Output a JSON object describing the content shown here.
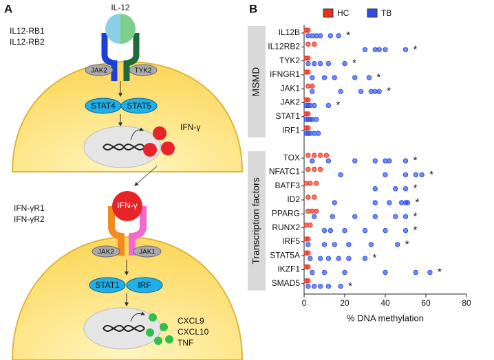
{
  "diagram": {
    "panel_label": "A",
    "ligand1": "IL-12",
    "receptor1a": "IL12-RB1",
    "receptor1b": "IL12-RB2",
    "kinase1a": "JAK2",
    "kinase1b": "TYK2",
    "stat1a": "STAT4",
    "stat1b": "STAT5",
    "product1": "IFN-γ",
    "ligand2": "IFN-γ",
    "receptor2a": "IFN-γR1",
    "receptor2b": "IFN-γR2",
    "kinase2a": "JAK2",
    "kinase2b": "JAK1",
    "stat2a": "STAT1",
    "stat2b": "IRF",
    "products2": [
      "CXCL9",
      "CXCL10",
      "TNF"
    ]
  },
  "chart_data": {
    "type": "dotplot",
    "panel_label": "B",
    "x_label": "% DNA methylation",
    "xlim": [
      0,
      80
    ],
    "xticks": [
      0,
      20,
      40,
      60,
      80
    ],
    "groups": [
      {
        "name": "MSMD",
        "categories": [
          "IL12B",
          "IL12RB2",
          "TYK2",
          "IFNGR1",
          "JAK1",
          "JAK2",
          "STAT1",
          "IRF1"
        ]
      },
      {
        "name": "Transcription factors",
        "categories": [
          "TOX",
          "NFATC1",
          "BATF3",
          "ID2",
          "PPARG",
          "RUNX2",
          "IRF5",
          "STAT5A",
          "IKZF1",
          "SMAD5"
        ]
      }
    ],
    "significance": [
      [
        "*",
        "*",
        "*",
        "*",
        "*",
        "*",
        null,
        null
      ],
      [
        "*",
        "*",
        "*",
        "*",
        "*",
        "*",
        "*",
        "*",
        "*",
        "*"
      ]
    ],
    "series": [
      {
        "name": "HC",
        "color": "#e8321e",
        "values": [
          [
            [
              1,
              2
            ],
            [
              2,
              5
            ],
            [
              1,
              2
            ],
            [
              1,
              2
            ],
            [
              2,
              4
            ],
            [
              1,
              2
            ],
            [
              1,
              2
            ],
            [
              1,
              2
            ]
          ],
          [
            [
              2,
              5,
              8,
              11
            ],
            [
              2,
              5,
              8
            ],
            [
              1,
              3,
              6
            ],
            [
              2,
              5
            ],
            [
              2,
              4,
              6
            ],
            [
              1,
              3
            ],
            [
              1,
              2
            ],
            [
              1,
              2
            ],
            [
              1,
              2
            ],
            [
              1,
              2
            ]
          ]
        ]
      },
      {
        "name": "TB",
        "color": "#2f4ee8",
        "values": [
          [
            [
              2,
              4,
              6,
              8,
              13,
              17
            ],
            [
              30,
              35,
              37,
              40,
              50
            ],
            [
              2,
              5,
              8,
              12,
              20
            ],
            [
              4,
              10,
              15,
              25,
              32
            ],
            [
              4,
              18,
              28,
              33,
              35,
              37
            ],
            [
              1,
              2,
              3,
              5,
              12
            ],
            [
              1,
              2,
              3,
              4,
              6
            ],
            [
              1,
              2,
              3,
              5,
              7
            ]
          ],
          [
            [
              4,
              12,
              25,
              35,
              40,
              42,
              50
            ],
            [
              18,
              40,
              50,
              55,
              58
            ],
            [
              35,
              45,
              50
            ],
            [
              15,
              35,
              42,
              48,
              50,
              51
            ],
            [
              5,
              14,
              25,
              35,
              45,
              50
            ],
            [
              10,
              13,
              20,
              30,
              40,
              50
            ],
            [
              2,
              10,
              15,
              22,
              33,
              46
            ],
            [
              3,
              8,
              12,
              17,
              22,
              30
            ],
            [
              4,
              10,
              20,
              40,
              55,
              62
            ],
            [
              2,
              5,
              8,
              12,
              18
            ]
          ]
        ]
      }
    ]
  }
}
